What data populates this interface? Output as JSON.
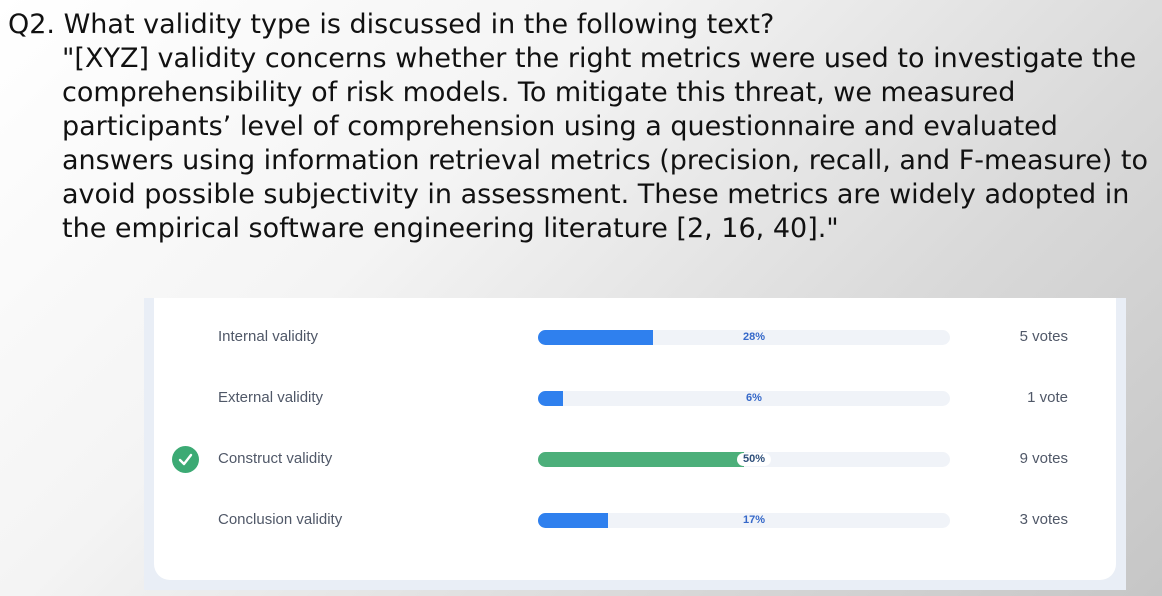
{
  "question": {
    "title": "Q2. What validity type is discussed in the following text?",
    "quote": "\"[XYZ] validity concerns whether the right metrics were used to investigate the comprehensibility of risk models. To mitigate this threat, we measured participants’ level of comprehension using a questionnaire and evaluated answers using information retrieval metrics (precision, recall, and F-measure) to avoid possible subjectivity in assessment. These metrics are widely adopted in the empirical software engineering literature [2, 16, 40].\""
  },
  "poll": {
    "options": [
      {
        "label": "Internal validity",
        "percent_label": "28%",
        "fraction": 0.28,
        "votes": "5 votes",
        "correct": false
      },
      {
        "label": "External validity",
        "percent_label": "6%",
        "fraction": 0.06,
        "votes": "1 vote",
        "correct": false
      },
      {
        "label": "Construct validity",
        "percent_label": "50%",
        "fraction": 0.5,
        "votes": "9 votes",
        "correct": true
      },
      {
        "label": "Conclusion validity",
        "percent_label": "17%",
        "fraction": 0.17,
        "votes": "3 votes",
        "correct": false
      }
    ],
    "correct_icon": "check-circle-icon",
    "colors": {
      "bar": "#2f80ee",
      "correct_bar": "#4caf7a",
      "track": "#f0f3f8"
    }
  }
}
